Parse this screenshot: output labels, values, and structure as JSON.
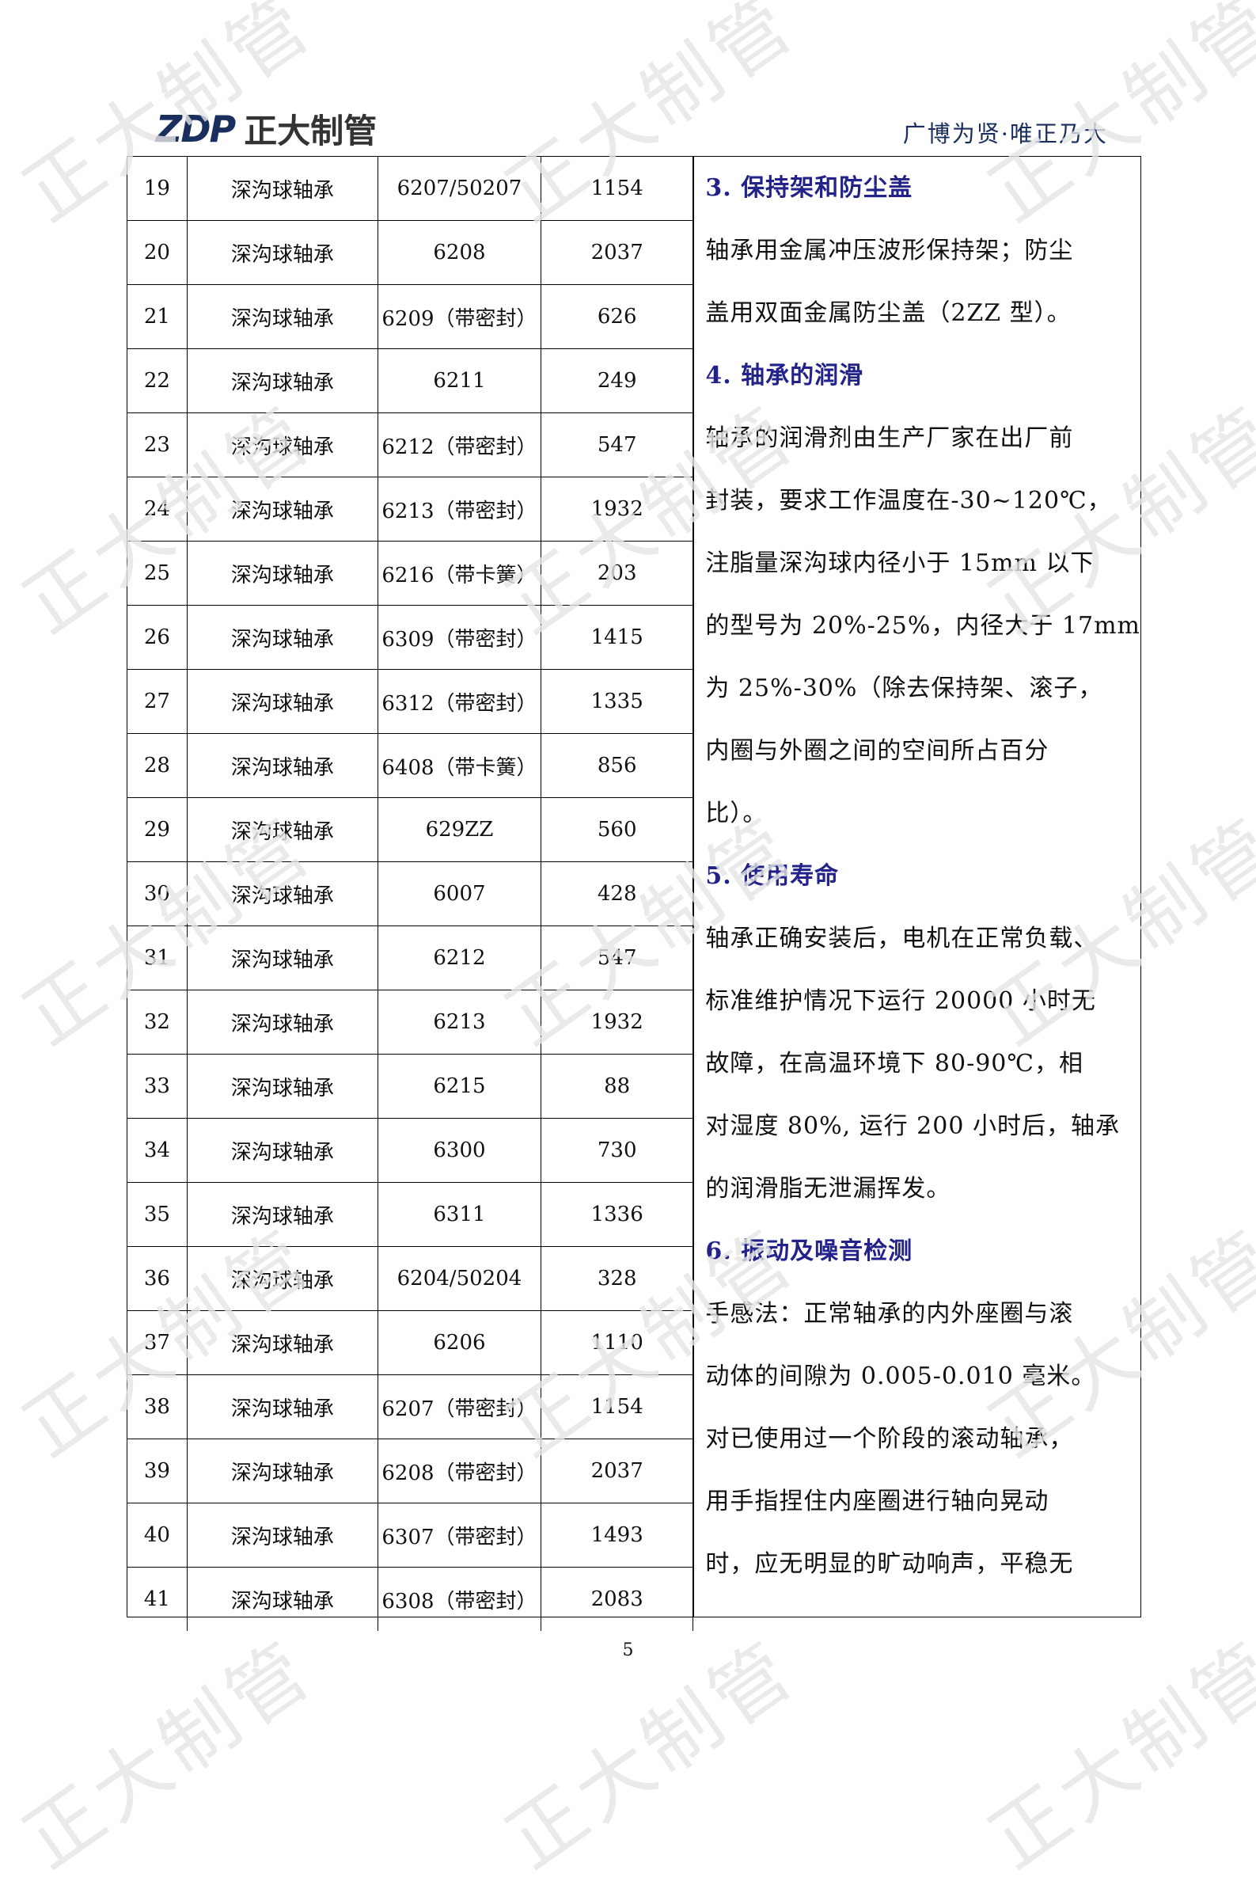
{
  "header": {
    "logo_mark": "ZDP",
    "logo_text": "正大制管",
    "slogan": "广博为贤·唯正乃大"
  },
  "watermark": "正大制管",
  "table": {
    "rows": [
      [
        "19",
        "深沟球轴承",
        "6207/50207",
        "1154"
      ],
      [
        "20",
        "深沟球轴承",
        "6208",
        "2037"
      ],
      [
        "21",
        "深沟球轴承",
        "6209（带密封）",
        "626"
      ],
      [
        "22",
        "深沟球轴承",
        "6211",
        "249"
      ],
      [
        "23",
        "深沟球轴承",
        "6212（带密封）",
        "547"
      ],
      [
        "24",
        "深沟球轴承",
        "6213（带密封）",
        "1932"
      ],
      [
        "25",
        "深沟球轴承",
        "6216（带卡簧）",
        "203"
      ],
      [
        "26",
        "深沟球轴承",
        "6309（带密封）",
        "1415"
      ],
      [
        "27",
        "深沟球轴承",
        "6312（带密封）",
        "1335"
      ],
      [
        "28",
        "深沟球轴承",
        "6408（带卡簧）",
        "856"
      ],
      [
        "29",
        "深沟球轴承",
        "629ZZ",
        "560"
      ],
      [
        "30",
        "深沟球轴承",
        "6007",
        "428"
      ],
      [
        "31",
        "深沟球轴承",
        "6212",
        "547"
      ],
      [
        "32",
        "深沟球轴承",
        "6213",
        "1932"
      ],
      [
        "33",
        "深沟球轴承",
        "6215",
        "88"
      ],
      [
        "34",
        "深沟球轴承",
        "6300",
        "730"
      ],
      [
        "35",
        "深沟球轴承",
        "6311",
        "1336"
      ],
      [
        "36",
        "深沟球轴承",
        "6204/50204",
        "328"
      ],
      [
        "37",
        "深沟球轴承",
        "6206",
        "1110"
      ],
      [
        "38",
        "深沟球轴承",
        "6207（带密封）",
        "1154"
      ],
      [
        "39",
        "深沟球轴承",
        "6208（带密封）",
        "2037"
      ],
      [
        "40",
        "深沟球轴承",
        "6307（带密封）",
        "1493"
      ],
      [
        "41",
        "深沟球轴承",
        "6308（带密封）",
        "2083"
      ]
    ]
  },
  "notes": [
    {
      "t": "3. 保持架和防尘盖",
      "h": true
    },
    {
      "t": "轴承用金属冲压波形保持架；防尘"
    },
    {
      "t": "盖用双面金属防尘盖（2ZZ 型）。"
    },
    {
      "t": "4. 轴承的润滑",
      "h": true
    },
    {
      "t": "轴承的润滑剂由生产厂家在出厂前"
    },
    {
      "t": "封装，要求工作温度在-30~120℃，"
    },
    {
      "t": "注脂量深沟球内径小于 15mm 以下"
    },
    {
      "t": "的型号为 20%-25%，内径大于 17mm"
    },
    {
      "t": "为 25%-30%（除去保持架、滚子，"
    },
    {
      "t": "内圈与外圈之间的空间所占百分"
    },
    {
      "t": "比）。"
    },
    {
      "t": "5. 使用寿命",
      "h": true
    },
    {
      "t": "轴承正确安装后，电机在正常负载、"
    },
    {
      "t": "标准维护情况下运行 20000 小时无"
    },
    {
      "t": "故障，在高温环境下 80-90℃，相"
    },
    {
      "t": "对湿度 80%, 运行 200 小时后，轴承"
    },
    {
      "t": "的润滑脂无泄漏挥发。"
    },
    {
      "t": "6. 振动及噪音检测",
      "h": true
    },
    {
      "t": "手感法：正常轴承的内外座圈与滚"
    },
    {
      "t": "动体的间隙为 0.005-0.010 毫米。"
    },
    {
      "t": "对已使用过一个阶段的滚动轴承，"
    },
    {
      "t": "用手指捏住内座圈进行轴向晃动"
    },
    {
      "t": "时，应无明显的旷动响声，平稳无"
    }
  ],
  "colors": {
    "heading": "#22228a",
    "brand": "#1b2f5e"
  },
  "page_number": "5"
}
